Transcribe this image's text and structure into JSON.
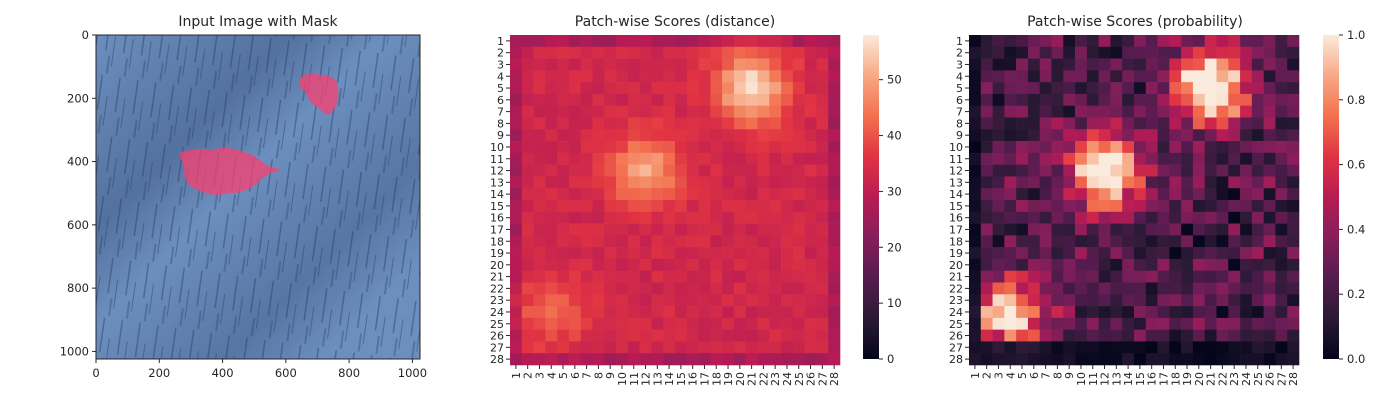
{
  "chart_data": [
    {
      "type": "image",
      "title": "Input Image with Mask",
      "xlim": [
        0,
        1024
      ],
      "ylim": [
        1024,
        0
      ],
      "xticks": [
        "0",
        "200",
        "400",
        "600",
        "800",
        "1000"
      ],
      "yticks": [
        "0",
        "200",
        "400",
        "600",
        "800",
        "1000"
      ],
      "background_color": "#5d82b4",
      "mask_color": "#ff3d6e",
      "mask_regions": [
        {
          "name": "large-defect",
          "x_range": [
            270,
            590
          ],
          "y_range": [
            355,
            520
          ]
        },
        {
          "name": "small-defect",
          "x_range": [
            645,
            770
          ],
          "y_range": [
            110,
            245
          ]
        }
      ]
    },
    {
      "type": "heatmap",
      "title": "Patch-wise Scores (distance)",
      "grid_size": 28,
      "row_labels": [
        "1",
        "2",
        "3",
        "4",
        "5",
        "6",
        "7",
        "8",
        "9",
        "10",
        "11",
        "12",
        "13",
        "14",
        "15",
        "16",
        "17",
        "18",
        "19",
        "20",
        "21",
        "22",
        "23",
        "24",
        "25",
        "26",
        "27",
        "28"
      ],
      "col_labels": [
        "1",
        "2",
        "3",
        "4",
        "5",
        "6",
        "7",
        "8",
        "9",
        "10",
        "11",
        "12",
        "13",
        "14",
        "15",
        "16",
        "17",
        "18",
        "19",
        "20",
        "21",
        "22",
        "23",
        "24",
        "25",
        "26",
        "27",
        "28"
      ],
      "colorbar_range": [
        0,
        58
      ],
      "colorbar_ticks": [
        "0",
        "10",
        "20",
        "30",
        "40",
        "50"
      ],
      "colormap": "rocket",
      "approx_hotspots": [
        {
          "row": 5,
          "col": 21,
          "peak": 57
        },
        {
          "row": 12,
          "col": 12,
          "peak": 50
        },
        {
          "row": 24,
          "col": 4,
          "peak": 42
        }
      ],
      "approx_border_value": 27,
      "approx_interior_value": 33
    },
    {
      "type": "heatmap",
      "title": "Patch-wise Scores (probability)",
      "grid_size": 28,
      "row_labels": [
        "1",
        "2",
        "3",
        "4",
        "5",
        "6",
        "7",
        "8",
        "9",
        "10",
        "11",
        "12",
        "13",
        "14",
        "15",
        "16",
        "17",
        "18",
        "19",
        "20",
        "21",
        "22",
        "23",
        "24",
        "25",
        "26",
        "27",
        "28"
      ],
      "col_labels": [
        "1",
        "2",
        "3",
        "4",
        "5",
        "6",
        "7",
        "8",
        "9",
        "10",
        "11",
        "12",
        "13",
        "14",
        "15",
        "16",
        "17",
        "18",
        "19",
        "20",
        "21",
        "22",
        "23",
        "24",
        "25",
        "26",
        "27",
        "28"
      ],
      "colorbar_range": [
        0.0,
        1.0
      ],
      "colorbar_ticks": [
        "0.0",
        "0.2",
        "0.4",
        "0.6",
        "0.8",
        "1.0"
      ],
      "colormap": "rocket",
      "approx_hotspots": [
        {
          "row": 5,
          "col": 21,
          "peak": 1.0
        },
        {
          "row": 12,
          "col": 12,
          "peak": 0.95
        },
        {
          "row": 24,
          "col": 4,
          "peak": 0.75
        }
      ],
      "approx_border_value": 0.05
    }
  ]
}
